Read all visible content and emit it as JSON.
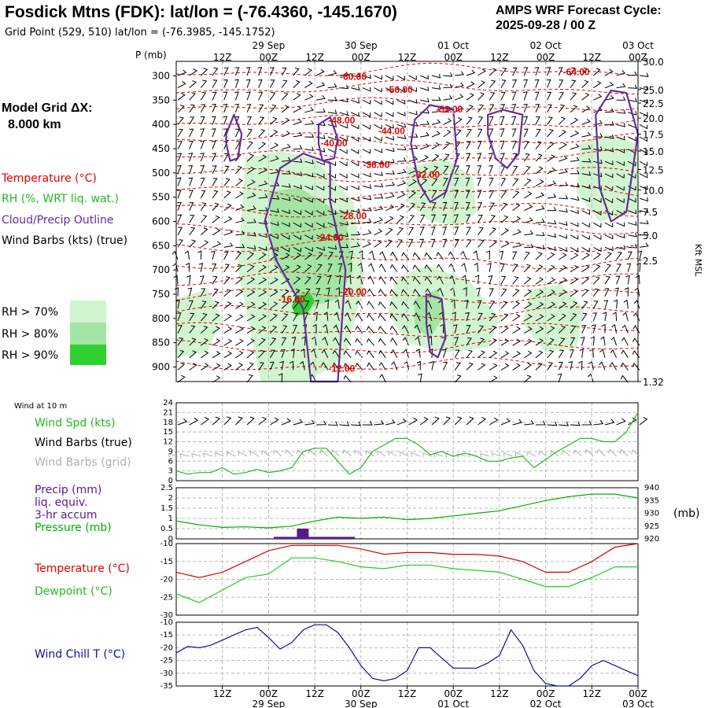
{
  "header": {
    "station_title": "Fosdick Mtns (FDK):  lat/lon = (-76.4360, -145.1670)",
    "grid_point": "Grid Point (529, 510) lat/lon = (-76.3985, -145.1752)",
    "cycle_line1": "AMPS WRF Forecast Cycle:",
    "cycle_line2": "2025-09-28 / 00  Z"
  },
  "left_panel": {
    "model_grid_label": "Model Grid ΔX:",
    "model_grid_value": "8.000 km",
    "legend_temperature": "Temperature (°C)",
    "legend_rh": "RH (%, WRT liq. wat.)",
    "legend_cloud": "Cloud/Precip Outline",
    "legend_wind": "Wind Barbs (kts) (true)",
    "rh_gt70": "RH > 70%",
    "rh_gt80": "RH > 80%",
    "rh_gt90": "RH > 90%"
  },
  "colors": {
    "temperature": "#e00000",
    "rh_text": "#22b822",
    "cloud": "#6a2a9a",
    "rh70": "#d0f5d0",
    "rh80": "#a4e4a4",
    "rh90": "#30d030",
    "pressure": "#00b000",
    "precip": "#5a1a8a",
    "temp_line": "#e00000",
    "dew_line": "#22cc22",
    "chill_line": "#1010a0",
    "grid_barb": "#b0b0b0",
    "wind_spd": "#22b822"
  },
  "time_axis": {
    "top_labels": [
      "12Z",
      "00Z",
      "12Z",
      "00Z",
      "12Z",
      "00Z",
      "12Z",
      "00Z",
      "12Z",
      "00Z"
    ],
    "date_labels": [
      "29 Sep",
      "30 Sep",
      "01 Oct",
      "02 Oct",
      "03 Oct"
    ],
    "bottom_labels": [
      "12Z",
      "00Z",
      "12Z",
      "00Z",
      "12Z",
      "00Z",
      "12Z",
      "00Z",
      "12Z",
      "00Z"
    ]
  },
  "chart_data": [
    {
      "type": "heatmap",
      "name": "cross-section",
      "yaxis_label": "P (mb)",
      "right_axis_label": "Kft MSL",
      "pressure_ticks": [
        "300",
        "350",
        "400",
        "450",
        "500",
        "550",
        "600",
        "650",
        "700",
        "750",
        "800",
        "850",
        "900"
      ],
      "pressure_values": [
        300,
        350,
        400,
        450,
        500,
        550,
        600,
        650,
        700,
        750,
        800,
        850,
        900
      ],
      "ylim_mb": [
        270,
        930
      ],
      "xlim_hours": [
        0,
        120
      ],
      "kft_ticks": [
        "30.0",
        "25.0",
        "22.5",
        "20.0",
        "17.5",
        "15.0",
        "12.5",
        "10.0",
        "7.5",
        "5.0",
        "2.5",
        "1.32"
      ],
      "kft_pressures": [
        270,
        328,
        356,
        387,
        420,
        455,
        493,
        535,
        580,
        628,
        680,
        930
      ],
      "temperature_contour_labels": [
        {
          "text": "-60.00",
          "hour": 46,
          "mb": 308
        },
        {
          "text": "-56.00",
          "hour": 58,
          "mb": 335
        },
        {
          "text": "-52.00",
          "hour": 71,
          "mb": 375
        },
        {
          "text": "-64.00",
          "hour": 104,
          "mb": 298
        },
        {
          "text": "-48.00",
          "hour": 43,
          "mb": 398
        },
        {
          "text": "-44.00",
          "hour": 56,
          "mb": 420
        },
        {
          "text": "-40.00",
          "hour": 41,
          "mb": 445
        },
        {
          "text": "-36.00",
          "hour": 52,
          "mb": 490
        },
        {
          "text": "-32.00",
          "hour": 65,
          "mb": 510
        },
        {
          "text": "-28.00",
          "hour": 46,
          "mb": 595
        },
        {
          "text": "-24.00",
          "hour": 40,
          "mb": 640
        },
        {
          "text": "-20.00",
          "hour": 46,
          "mb": 752
        },
        {
          "text": "-16.00",
          "hour": 30,
          "mb": 767
        },
        {
          "text": "-12.00",
          "hour": 43,
          "mb": 910
        }
      ],
      "rh_regions": [
        {
          "level": 70,
          "hours": [
            18,
            27,
            36,
            46,
            49,
            44,
            34,
            22,
            16
          ],
          "mb": [
            470,
            455,
            470,
            560,
            720,
            880,
            930,
            930,
            700
          ]
        },
        {
          "level": 70,
          "hours": [
            60,
            70,
            77,
            78,
            74,
            66,
            60
          ],
          "mb": [
            490,
            470,
            510,
            580,
            610,
            600,
            560
          ]
        },
        {
          "level": 70,
          "hours": [
            57,
            65,
            76,
            84,
            81,
            70,
            60,
            55
          ],
          "mb": [
            720,
            690,
            720,
            800,
            860,
            870,
            850,
            790
          ]
        },
        {
          "level": 70,
          "hours": [
            105,
            112,
            120,
            120,
            110,
            104
          ],
          "mb": [
            440,
            420,
            440,
            580,
            600,
            540
          ]
        },
        {
          "level": 70,
          "hours": [
            92,
            100,
            106,
            104,
            96,
            90
          ],
          "mb": [
            740,
            730,
            780,
            860,
            870,
            810
          ]
        },
        {
          "level": 70,
          "hours": [
            0,
            8,
            12,
            8,
            0
          ],
          "mb": [
            760,
            740,
            800,
            870,
            880
          ]
        },
        {
          "level": 80,
          "hours": [
            24,
            32,
            44,
            46,
            42,
            33,
            25
          ],
          "mb": [
            540,
            530,
            590,
            700,
            760,
            780,
            680
          ]
        },
        {
          "level": 80,
          "hours": [
            62,
            68,
            70,
            66,
            62
          ],
          "mb": [
            760,
            740,
            790,
            840,
            820
          ]
        },
        {
          "level": 90,
          "hours": [
            31,
            35,
            36,
            34,
            31,
            30
          ],
          "mb": [
            752,
            750,
            765,
            790,
            795,
            775
          ]
        }
      ],
      "cloud_outlines": [
        {
          "hours": [
            23,
            27,
            33,
            40,
            40,
            44,
            42,
            35,
            33,
            26
          ],
          "mb": [
            600,
            490,
            460,
            480,
            560,
            700,
            930,
            930,
            780,
            680
          ]
        },
        {
          "hours": [
            13,
            15,
            17,
            16,
            14,
            13
          ],
          "mb": [
            420,
            380,
            420,
            470,
            475,
            440
          ]
        },
        {
          "hours": [
            37,
            40,
            42,
            41,
            38,
            37
          ],
          "mb": [
            400,
            385,
            430,
            470,
            475,
            440
          ]
        },
        {
          "hours": [
            62,
            66,
            72,
            73,
            70,
            66,
            63,
            61
          ],
          "mb": [
            390,
            360,
            370,
            470,
            540,
            560,
            520,
            440
          ]
        },
        {
          "hours": [
            81,
            85,
            90,
            89,
            86,
            83,
            81
          ],
          "mb": [
            380,
            370,
            380,
            460,
            490,
            470,
            420
          ]
        },
        {
          "hours": [
            109,
            113,
            117,
            120,
            117,
            113,
            110
          ],
          "mb": [
            380,
            330,
            335,
            420,
            580,
            600,
            530
          ]
        },
        {
          "hours": [
            65,
            69,
            70,
            68,
            66,
            65
          ],
          "mb": [
            750,
            760,
            840,
            880,
            870,
            810
          ]
        }
      ]
    },
    {
      "type": "line",
      "name": "wind",
      "panel_title": "Wind at 10 m",
      "legend": [
        "Wind Spd (kts)",
        "Wind Barbs (true)",
        "Wind Barbs (grid)"
      ],
      "y_ticks": [
        "24",
        "21",
        "18",
        "15",
        "12",
        "9",
        "6",
        "3",
        "0"
      ],
      "ylim": [
        0,
        24
      ],
      "x_hours": [
        0,
        3,
        6,
        9,
        12,
        15,
        18,
        21,
        24,
        27,
        30,
        33,
        36,
        39,
        42,
        45,
        48,
        51,
        54,
        57,
        60,
        63,
        66,
        69,
        72,
        75,
        78,
        81,
        84,
        87,
        90,
        93,
        96,
        99,
        102,
        105,
        108,
        111,
        114,
        117,
        120
      ],
      "wind_speed_kts": [
        3.0,
        2.0,
        2.5,
        2.5,
        4.0,
        2.0,
        2.5,
        3.5,
        2.5,
        3.0,
        4.0,
        9.0,
        10.0,
        10.0,
        6.0,
        2.0,
        4.0,
        9.0,
        11.0,
        13.0,
        13.0,
        11.0,
        8.0,
        9.0,
        7.5,
        8.5,
        7.5,
        6.0,
        6.0,
        7.0,
        7.5,
        4.0,
        6.5,
        9.0,
        11.0,
        13.0,
        13.0,
        12.0,
        12.0,
        15.0,
        21.0
      ]
    },
    {
      "type": "bar",
      "name": "precip-pressure",
      "legend": [
        "Precip (mm)",
        "liq. equiv.",
        "3-hr accum",
        "Pressure (mb)"
      ],
      "y_ticks_left": [
        "2.5",
        "2",
        "1.5",
        "1",
        "0.5",
        "0"
      ],
      "ylim_precip_mm": [
        0,
        2.5
      ],
      "y_ticks_right": [
        "940",
        "935",
        "930",
        "925",
        "920"
      ],
      "ylim_pressure_mb": [
        920,
        940
      ],
      "right_axis_unit": "(mb)",
      "precip_x_hours": [
        27,
        30,
        33,
        36,
        39,
        42,
        45
      ],
      "precip_mm": [
        0.1,
        0.1,
        0.5,
        0.1,
        0.1,
        0.1,
        0.1
      ],
      "pressure_x_hours": [
        0,
        6,
        12,
        18,
        24,
        30,
        36,
        42,
        48,
        54,
        60,
        66,
        72,
        78,
        84,
        90,
        96,
        102,
        108,
        114,
        120
      ],
      "pressure_mb": [
        927.0,
        925.5,
        924.5,
        924.7,
        924.3,
        925.0,
        927.0,
        928.5,
        928.0,
        928.5,
        927.5,
        928.0,
        929.0,
        930.0,
        931.0,
        933.0,
        935.0,
        936.5,
        937.5,
        937.5,
        936.0
      ]
    },
    {
      "type": "line",
      "name": "temperature-dewpoint",
      "legend": [
        "Temperature (°C)",
        "Dewpoint (°C)"
      ],
      "y_ticks": [
        "-10",
        "-15",
        "-20",
        "-25",
        "-30"
      ],
      "ylim": [
        -30,
        -10
      ],
      "x_hours": [
        0,
        6,
        12,
        18,
        24,
        30,
        36,
        42,
        48,
        54,
        60,
        66,
        72,
        78,
        84,
        90,
        96,
        102,
        108,
        114,
        120
      ],
      "temperature_c": [
        -18,
        -19.5,
        -18,
        -15,
        -12,
        -10.5,
        -10.5,
        -10.5,
        -11.5,
        -13,
        -12.5,
        -12.5,
        -13,
        -13,
        -13.5,
        -15,
        -18,
        -18,
        -15,
        -11,
        -10
      ],
      "dewpoint_c": [
        -24,
        -26.5,
        -23,
        -19.5,
        -18.5,
        -14,
        -14,
        -15,
        -16.5,
        -17,
        -16,
        -16,
        -17,
        -17.5,
        -18,
        -20,
        -22,
        -22,
        -19.5,
        -16.5,
        -16.5
      ]
    },
    {
      "type": "line",
      "name": "wind-chill",
      "legend": [
        "Wind Chill T (°C)"
      ],
      "y_ticks": [
        "-10",
        "-15",
        "-20",
        "-25",
        "-30",
        "-35"
      ],
      "ylim": [
        -35,
        -10
      ],
      "x_hours": [
        0,
        3,
        6,
        9,
        12,
        15,
        18,
        21,
        24,
        27,
        30,
        33,
        36,
        39,
        42,
        45,
        48,
        51,
        54,
        57,
        60,
        63,
        66,
        69,
        72,
        75,
        78,
        81,
        84,
        87,
        90,
        93,
        96,
        99,
        102,
        105,
        108,
        111,
        114,
        117,
        120
      ],
      "wind_chill_c": [
        -22,
        -19.5,
        -20,
        -19,
        -17,
        -15,
        -13,
        -12,
        -16,
        -20.5,
        -18,
        -13,
        -11,
        -11,
        -14,
        -20,
        -27,
        -32,
        -33,
        -32,
        -29,
        -20,
        -20,
        -24,
        -28,
        -28,
        -28,
        -26,
        -23,
        -13,
        -19,
        -29,
        -34,
        -35,
        -35,
        -32,
        -27,
        -25,
        -27,
        -29,
        -31
      ]
    }
  ]
}
